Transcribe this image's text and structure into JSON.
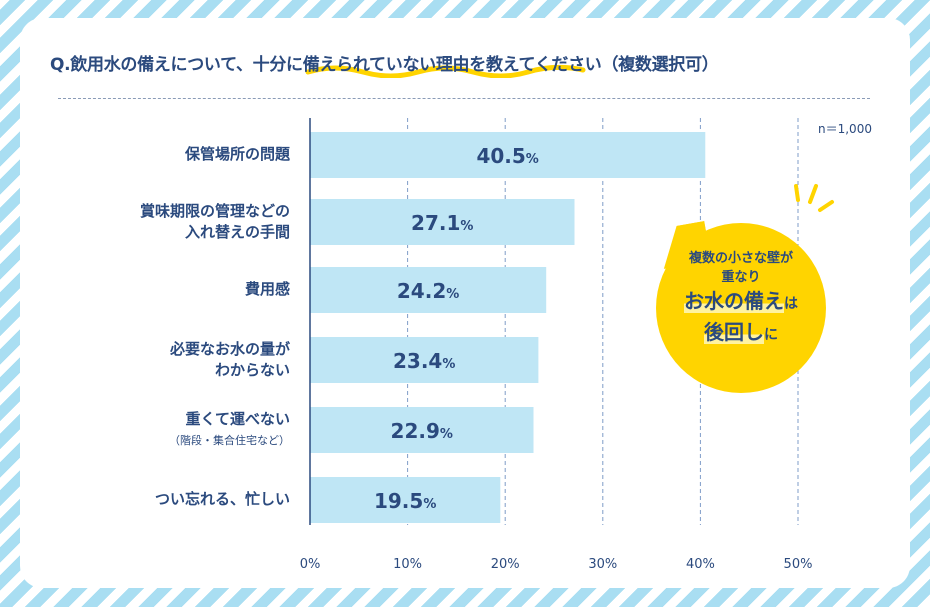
{
  "chart_data": {
    "type": "bar",
    "orientation": "horizontal",
    "title_prefix": "Q.飲用水の備えについて、",
    "title_highlight": "十分に備えられていない理由",
    "title_suffix": "を教えてください（複数選択可）",
    "categories": [
      {
        "line1": "保管場所の問題",
        "line2": ""
      },
      {
        "line1": "賞味期限の管理などの",
        "line2": "入れ替えの手間"
      },
      {
        "line1": "費用感",
        "line2": ""
      },
      {
        "line1": "必要なお水の量が",
        "line2": "わからない"
      },
      {
        "line1": "重くて運べない",
        "line2": "（階段・集合住宅など）"
      },
      {
        "line1": "つい忘れる、忙しい",
        "line2": ""
      }
    ],
    "values": [
      40.5,
      27.1,
      24.2,
      23.4,
      22.9,
      19.5
    ],
    "value_labels": [
      "40.5",
      "27.1",
      "24.2",
      "23.4",
      "22.9",
      "19.5"
    ],
    "unit": "%",
    "xlim": [
      0,
      50
    ],
    "xticks": [
      "0%",
      "10%",
      "20%",
      "30%",
      "40%",
      "50%"
    ],
    "grid": true,
    "sample_note": "n＝1,000",
    "colors": {
      "bar": "#bfe6f5",
      "text": "#2b4a7e",
      "accent": "#ffd400"
    }
  },
  "callout": {
    "line1": "複数の小さな壁が",
    "line2": "重なり",
    "line3a": "お水の備え",
    "line3b": "は",
    "line4a": "後回し",
    "line4b": "に"
  }
}
